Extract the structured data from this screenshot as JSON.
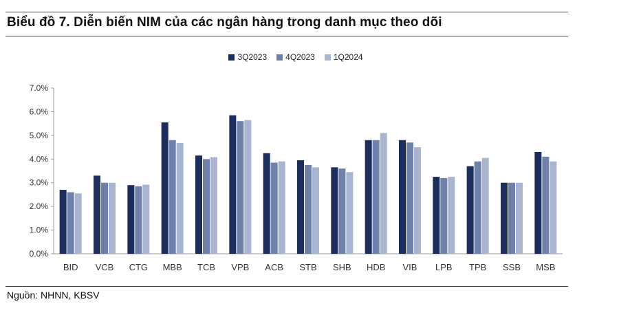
{
  "title": "Biểu đồ 7. Diễn biến NIM của các ngân hàng trong danh mục theo dõi",
  "source": "Nguồn: NHNN, KBSV",
  "colors": {
    "series_3Q2023": "#1b2d5b",
    "series_4Q2023": "#6f81a8",
    "series_1Q2024": "#a9b4cf",
    "axis": "#999999",
    "rule": "#444444"
  },
  "chart_data": {
    "type": "bar",
    "categories": [
      "BID",
      "VCB",
      "CTG",
      "MBB",
      "TCB",
      "VPB",
      "ACB",
      "STB",
      "SHB",
      "HDB",
      "VIB",
      "LPB",
      "TPB",
      "SSB",
      "MSB"
    ],
    "series": [
      {
        "name": "3Q2023",
        "values": [
          2.7,
          3.3,
          2.9,
          5.55,
          4.15,
          5.85,
          4.25,
          3.95,
          3.65,
          4.8,
          4.8,
          3.25,
          3.7,
          3.0,
          4.3
        ]
      },
      {
        "name": "4Q2023",
        "values": [
          2.6,
          3.0,
          2.85,
          4.8,
          4.0,
          5.6,
          3.85,
          3.75,
          3.6,
          4.8,
          4.7,
          3.2,
          3.9,
          3.0,
          4.1
        ]
      },
      {
        "name": "1Q2024",
        "values": [
          2.55,
          3.0,
          2.92,
          4.68,
          4.08,
          5.65,
          3.9,
          3.65,
          3.45,
          5.1,
          4.5,
          3.25,
          4.05,
          3.0,
          3.9
        ]
      }
    ],
    "y_ticks": [
      "0.0%",
      "1.0%",
      "2.0%",
      "3.0%",
      "4.0%",
      "5.0%",
      "6.0%",
      "7.0%"
    ],
    "ylim": [
      0,
      7
    ],
    "grid": false,
    "legend_position": "top-center"
  }
}
